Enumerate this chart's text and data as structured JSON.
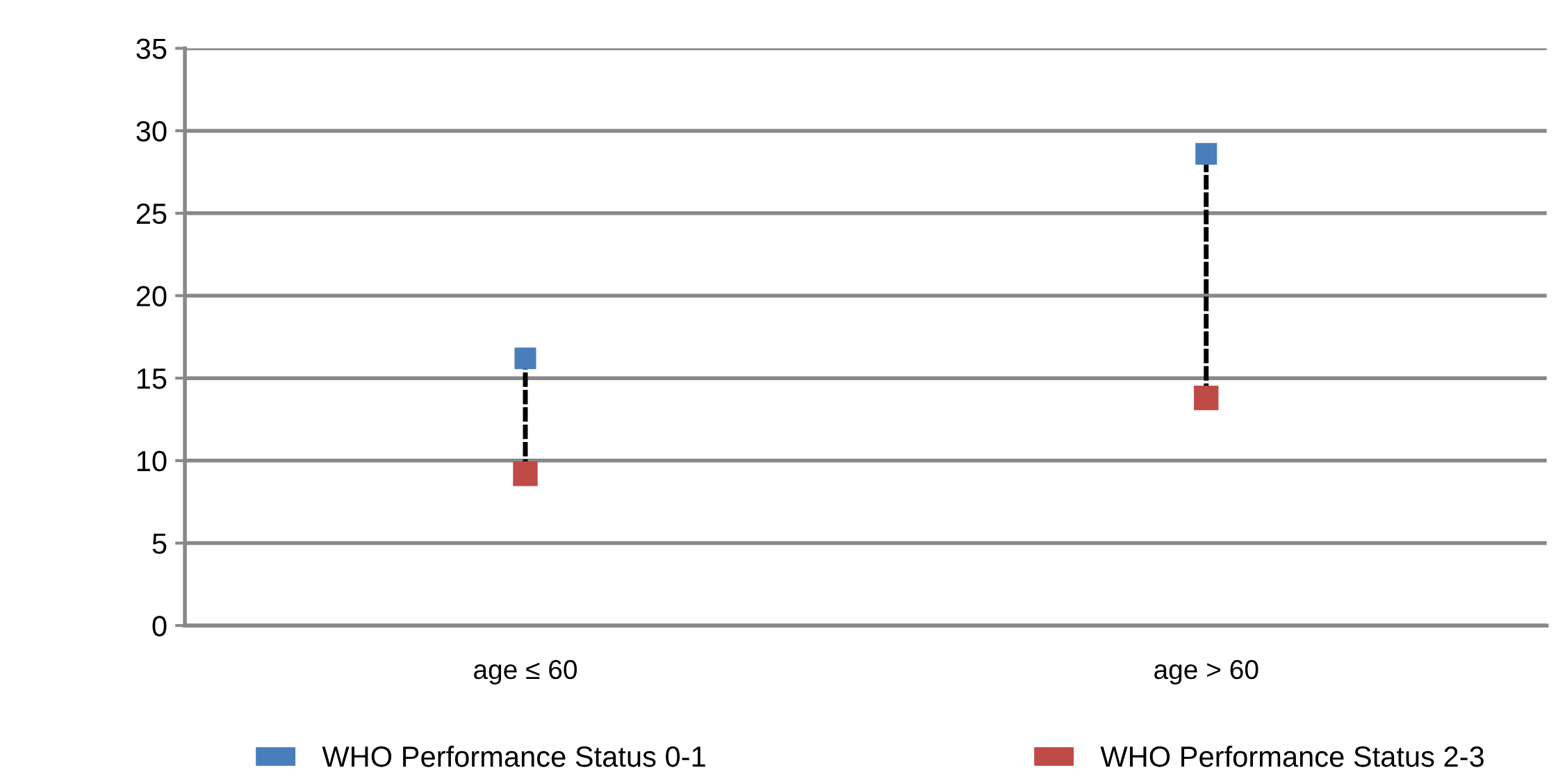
{
  "chart_data": {
    "type": "scatter",
    "categories": [
      "age ≤ 60",
      "age > 60"
    ],
    "series": [
      {
        "name": "WHO Performance Status 0-1",
        "color": "#4a7ebb",
        "values": [
          16.2,
          28.6
        ]
      },
      {
        "name": "WHO Performance Status 2-3",
        "color": "#be4b48",
        "values": [
          9.2,
          13.8
        ]
      }
    ],
    "ylim": [
      0,
      35
    ],
    "yticks": [
      0,
      5,
      10,
      15,
      20,
      25,
      30,
      35
    ],
    "grid": "y",
    "legend": "bottom",
    "marker": "square",
    "line_style": "dashed"
  }
}
